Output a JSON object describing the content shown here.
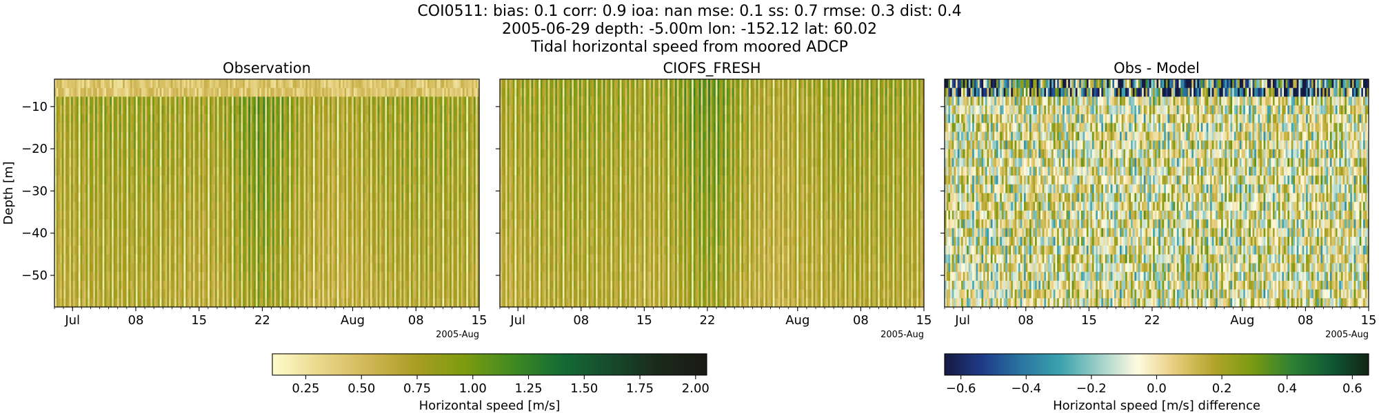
{
  "suptitle": {
    "line1": "COI0511: bias: 0.1  corr: 0.9  ioa: nan  mse: 0.1  ss: 0.7  rmse: 0.3  dist: 0.4",
    "line2": "2005-06-29 depth: -5.00m lon: -152.12 lat: 60.02",
    "line3": "Tidal horizontal speed from moored ADCP"
  },
  "chart_data": [
    {
      "type": "heatmap",
      "title": "Observation",
      "ylabel": "Depth [m]",
      "ylim": [
        -57.5,
        -3.5
      ],
      "yticks": [
        -10,
        -20,
        -30,
        -40,
        -50
      ],
      "xlim": [
        "2005-06-29",
        "2005-08-15"
      ],
      "xticks": [
        {
          "date": "2005-07-01",
          "label": "Jul"
        },
        {
          "date": "2005-07-08",
          "label": "08"
        },
        {
          "date": "2005-07-15",
          "label": "15"
        },
        {
          "date": "2005-07-22",
          "label": "22"
        },
        {
          "date": "2005-08-01",
          "label": "Aug"
        },
        {
          "date": "2005-08-08",
          "label": "08"
        },
        {
          "date": "2005-08-15",
          "label": "15"
        }
      ],
      "offset_label": "2005-Aug",
      "colormap": "speed",
      "clim": [
        0.1,
        2.05
      ]
    },
    {
      "type": "heatmap",
      "title": "CIOFS_FRESH",
      "ylim": [
        -57.5,
        -3.5
      ],
      "xlim": [
        "2005-06-29",
        "2005-08-15"
      ],
      "xticks": [
        {
          "date": "2005-07-01",
          "label": "Jul"
        },
        {
          "date": "2005-07-08",
          "label": "08"
        },
        {
          "date": "2005-07-15",
          "label": "15"
        },
        {
          "date": "2005-07-22",
          "label": "22"
        },
        {
          "date": "2005-08-01",
          "label": "Aug"
        },
        {
          "date": "2005-08-08",
          "label": "08"
        },
        {
          "date": "2005-08-15",
          "label": "15"
        }
      ],
      "offset_label": "2005-Aug",
      "colormap": "speed",
      "clim": [
        0.1,
        2.05
      ]
    },
    {
      "type": "heatmap",
      "title": "Obs - Model",
      "ylim": [
        -57.5,
        -3.5
      ],
      "xlim": [
        "2005-06-29",
        "2005-08-15"
      ],
      "xticks": [
        {
          "date": "2005-07-01",
          "label": "Jul"
        },
        {
          "date": "2005-07-08",
          "label": "08"
        },
        {
          "date": "2005-07-15",
          "label": "15"
        },
        {
          "date": "2005-07-22",
          "label": "22"
        },
        {
          "date": "2005-08-01",
          "label": "Aug"
        },
        {
          "date": "2005-08-08",
          "label": "08"
        },
        {
          "date": "2005-08-15",
          "label": "15"
        }
      ],
      "offset_label": "2005-Aug",
      "colormap": "diff",
      "clim": [
        -0.65,
        0.65
      ]
    }
  ],
  "colorbars": [
    {
      "label": "Horizontal speed [m/s]",
      "range": [
        0.1,
        2.05
      ],
      "ticks": [
        "0.25",
        "0.50",
        "0.75",
        "1.00",
        "1.25",
        "1.50",
        "1.75",
        "2.00"
      ],
      "colors": [
        "#fefccd",
        "#e9d78a",
        "#d0b655",
        "#a89d22",
        "#7c9b10",
        "#3f8a22",
        "#146b35",
        "#174a2c",
        "#1a2a1a",
        "#1a1a14"
      ]
    },
    {
      "label": "Horizontal speed [m/s] difference",
      "range": [
        -0.65,
        0.65
      ],
      "ticks": [
        "−0.6",
        "−0.4",
        "−0.2",
        "0.0",
        "0.2",
        "0.4",
        "0.6"
      ],
      "colors": [
        "#151a40",
        "#1f3c8a",
        "#2a76a0",
        "#3aa2ad",
        "#9ecfc9",
        "#fffbe0",
        "#e6cc7a",
        "#b1a42a",
        "#7a9a12",
        "#2d8132",
        "#0f5a35",
        "#122414"
      ]
    }
  ]
}
